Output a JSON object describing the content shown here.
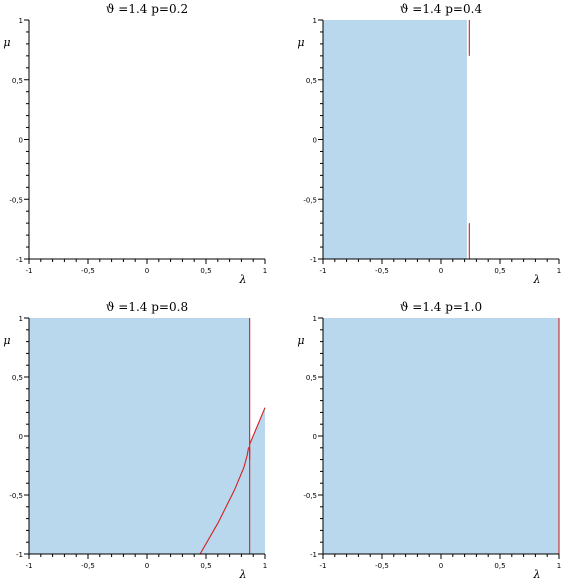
{
  "chart_data": [
    {
      "type": "area",
      "title": "ϑ =1.4   p=0.2",
      "xlabel": "λ",
      "ylabel": "μ",
      "xlim": [
        -1,
        1
      ],
      "ylim": [
        -1,
        1
      ],
      "xticks": [
        "-1",
        "-0,5",
        "0",
        "0,5",
        "1"
      ],
      "yticks": [
        "1",
        "0,5",
        "0",
        "-0,5",
        "-1"
      ],
      "grid": false,
      "fill_color": "#b9d8ee",
      "line_color": "#d42020",
      "regions": [],
      "curves": []
    },
    {
      "type": "area",
      "title": "ϑ =1.4   p=0.4",
      "xlabel": "λ",
      "ylabel": "μ",
      "xlim": [
        -1,
        1
      ],
      "ylim": [
        -1,
        1
      ],
      "xticks": [
        "-1",
        "-0,5",
        "0",
        "0,5",
        "1"
      ],
      "yticks": [
        "1",
        "0,5",
        "0",
        "-0,5",
        "-1"
      ],
      "grid": false,
      "fill_color": "#b9d8ee",
      "line_color": "#d42020",
      "regions": [
        {
          "points": [
            [
              -1,
              -1
            ],
            [
              0.22,
              -1
            ],
            [
              0.22,
              1
            ],
            [
              -1,
              1
            ]
          ]
        }
      ],
      "curves": [
        {
          "points": [
            [
              0.24,
              1
            ],
            [
              0.24,
              0.7
            ]
          ]
        },
        {
          "points": [
            [
              0.24,
              -0.7
            ],
            [
              0.24,
              -1
            ]
          ]
        }
      ]
    },
    {
      "type": "area",
      "title": "ϑ =1.4   p=0.8",
      "xlabel": "λ",
      "ylabel": "μ",
      "xlim": [
        -1,
        1
      ],
      "ylim": [
        -1,
        1
      ],
      "xticks": [
        "-1",
        "-0,5",
        "0",
        "0,5",
        "1"
      ],
      "yticks": [
        "1",
        "0,5",
        "0",
        "-0,5",
        "-1"
      ],
      "grid": false,
      "fill_color": "#b9d8ee",
      "line_color": "#d42020",
      "regions": [
        {
          "points": [
            [
              -1,
              -1
            ],
            [
              0.87,
              -1
            ],
            [
              0.87,
              1
            ],
            [
              -1,
              1
            ]
          ]
        },
        {
          "points": [
            [
              0.87,
              -0.07
            ],
            [
              1,
              0.24
            ],
            [
              1,
              -1
            ],
            [
              0.87,
              -1
            ]
          ]
        }
      ],
      "curves": [
        {
          "points": [
            [
              0.87,
              1
            ],
            [
              0.87,
              -1
            ]
          ]
        },
        {
          "points": [
            [
              0.87,
              -0.07
            ],
            [
              1,
              0.24
            ]
          ]
        },
        {
          "points": [
            [
              0.45,
              -1
            ],
            [
              0.6,
              -0.74
            ],
            [
              0.74,
              -0.46
            ],
            [
              0.82,
              -0.27
            ],
            [
              0.85,
              -0.16
            ],
            [
              0.86,
              -0.1
            ],
            [
              0.87,
              -0.1
            ],
            [
              0.87,
              -0.2
            ]
          ]
        }
      ]
    },
    {
      "type": "area",
      "title": "ϑ =1.4   p=1.0",
      "xlabel": "λ",
      "ylabel": "μ",
      "xlim": [
        -1,
        1
      ],
      "ylim": [
        -1,
        1
      ],
      "xticks": [
        "-1",
        "-0,5",
        "0",
        "0,5",
        "1"
      ],
      "yticks": [
        "1",
        "0,5",
        "0",
        "-0,5",
        "-1"
      ],
      "grid": false,
      "fill_color": "#b9d8ee",
      "line_color": "#d42020",
      "regions": [
        {
          "points": [
            [
              -1,
              -1
            ],
            [
              1,
              -1
            ],
            [
              1,
              1
            ],
            [
              -1,
              1
            ]
          ]
        }
      ],
      "curves": [
        {
          "points": [
            [
              1,
              1
            ],
            [
              1,
              -1
            ]
          ]
        }
      ]
    }
  ]
}
